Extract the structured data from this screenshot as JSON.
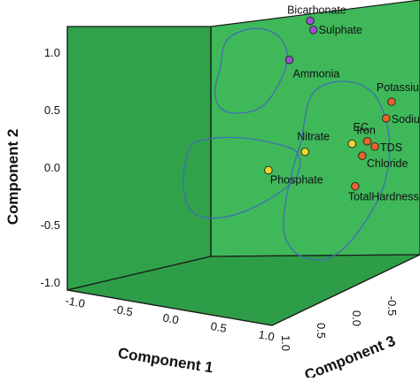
{
  "chart_data": {
    "type": "scatter",
    "subtype": "3d-component-plot",
    "title": "",
    "xlabel": "Component 1",
    "ylabel": "Component 2",
    "zlabel": "Component 3",
    "xticks": [
      "-1.0",
      "-0.5",
      "0.0",
      "0.5",
      "1.0"
    ],
    "yticks": [
      "-1.0",
      "-0.5",
      "0.0",
      "0.5",
      "1.0"
    ],
    "zticks": [
      "-0.5",
      "0.0",
      "0.5",
      "1.0"
    ],
    "xlim": [
      -1.0,
      1.0
    ],
    "ylim": [
      -1.0,
      1.0
    ],
    "zlim": [
      -0.5,
      1.0
    ],
    "grid": false,
    "legend": "none",
    "colors": {
      "wall": "#31a74d",
      "back_wall": "#3fb85a",
      "edge": "#1a1a1a",
      "hull": "#3f6fb0"
    },
    "series": [
      {
        "color": "#9b4fd1",
        "points": [
          {
            "label": "Bicarbonate",
            "x": -0.05,
            "y": 1.05,
            "z": 1.0
          },
          {
            "label": "Sulphate",
            "x": -0.02,
            "y": 0.97,
            "z": 1.0
          },
          {
            "label": "Ammonia",
            "x": -0.25,
            "y": 0.71,
            "z": 1.0
          }
        ]
      },
      {
        "color": "#f2d52a",
        "points": [
          {
            "label": "Nitrate",
            "x": -0.1,
            "y": -0.09,
            "z": 1.0
          },
          {
            "label": "Phosphate",
            "x": -0.45,
            "y": -0.25,
            "z": 1.0
          },
          {
            "label": "Iron",
            "x": 0.35,
            "y": -0.02,
            "z": 1.0
          }
        ]
      },
      {
        "color": "#e8642b",
        "points": [
          {
            "label": "Potassium",
            "x": 0.74,
            "y": 0.35,
            "z": 0.9
          },
          {
            "label": "Sodium",
            "x": 0.7,
            "y": 0.21,
            "z": 0.8
          },
          {
            "label": "EC",
            "x": 0.52,
            "y": 0.01,
            "z": 0.8
          },
          {
            "label": "TDS",
            "x": 0.58,
            "y": -0.04,
            "z": 0.9
          },
          {
            "label": "Chloride",
            "x": 0.46,
            "y": -0.12,
            "z": 0.9
          },
          {
            "label": "TotalHardness",
            "x": 0.38,
            "y": -0.39,
            "z": 1.0
          }
        ]
      }
    ]
  }
}
